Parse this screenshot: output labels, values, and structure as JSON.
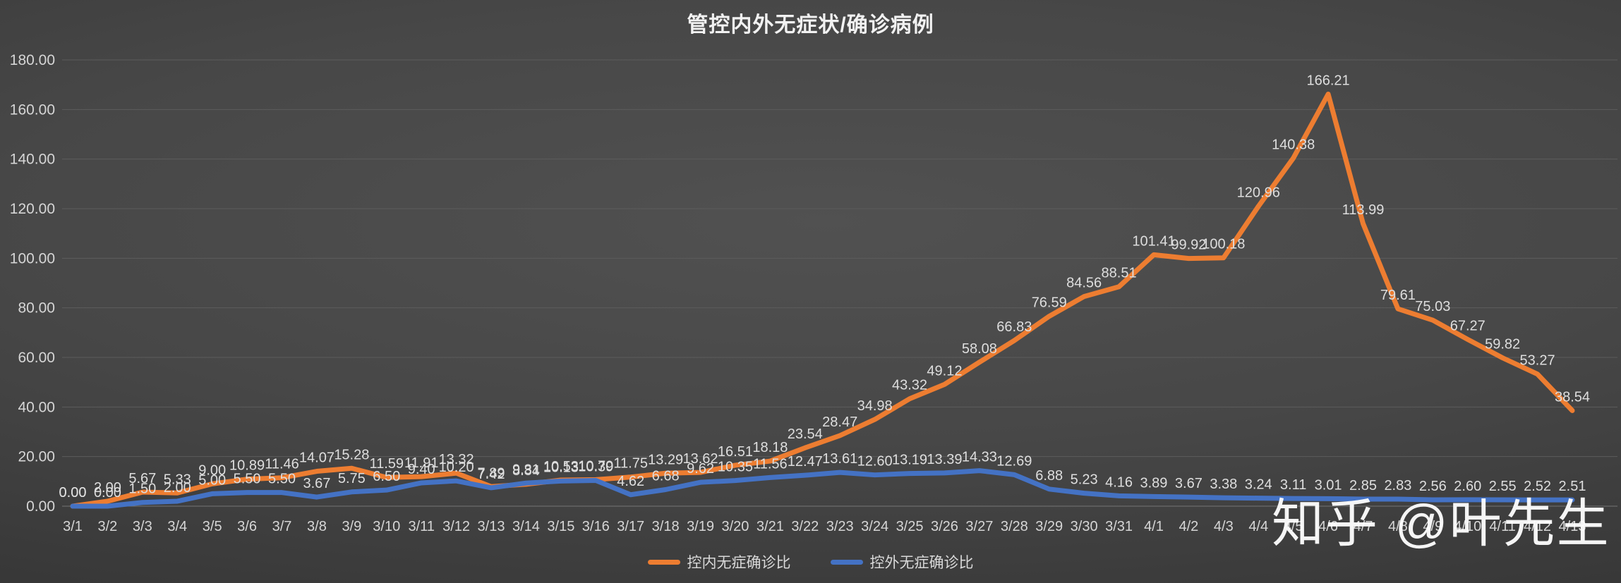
{
  "watermark": {
    "text": "知乎 @叶先生"
  },
  "chart_data": {
    "type": "line",
    "title": "管控内外无症状/确诊病例",
    "categories": [
      "3/1",
      "3/2",
      "3/3",
      "3/4",
      "3/5",
      "3/6",
      "3/7",
      "3/8",
      "3/9",
      "3/10",
      "3/11",
      "3/12",
      "3/13",
      "3/14",
      "3/15",
      "3/16",
      "3/17",
      "3/18",
      "3/19",
      "3/20",
      "3/21",
      "3/22",
      "3/23",
      "3/24",
      "3/25",
      "3/26",
      "3/27",
      "3/28",
      "3/29",
      "3/30",
      "3/31",
      "4/1",
      "4/2",
      "4/3",
      "4/4",
      "4/5",
      "4/6",
      "4/7",
      "4/8",
      "4/9",
      "4/10",
      "4/11",
      "4/12",
      "4/13"
    ],
    "series": [
      {
        "name": "控内无症确诊比",
        "color": "#ED7D31",
        "values": [
          0.0,
          2.0,
          5.67,
          5.33,
          9.0,
          10.89,
          11.46,
          14.07,
          15.28,
          11.59,
          11.91,
          13.32,
          7.89,
          8.84,
          10.53,
          10.7,
          11.75,
          13.29,
          13.62,
          16.51,
          18.18,
          23.54,
          28.47,
          34.98,
          43.32,
          49.12,
          58.08,
          66.83,
          76.59,
          84.56,
          88.51,
          101.41,
          99.92,
          100.18,
          120.96,
          140.38,
          166.21,
          113.99,
          79.61,
          75.03,
          67.27,
          59.82,
          53.27,
          38.54
        ]
      },
      {
        "name": "控外无症确诊比",
        "color": "#4472C4",
        "values": [
          0.0,
          0.0,
          1.5,
          2.0,
          5.0,
          5.5,
          5.5,
          3.67,
          5.75,
          6.5,
          9.4,
          10.2,
          7.42,
          9.31,
          10.13,
          10.39,
          4.62,
          6.68,
          9.62,
          10.35,
          11.56,
          12.47,
          13.61,
          12.6,
          13.19,
          13.39,
          14.33,
          12.69,
          6.88,
          5.23,
          4.16,
          3.89,
          3.67,
          3.38,
          3.24,
          3.11,
          3.01,
          2.85,
          2.83,
          2.56,
          2.6,
          2.55,
          2.52,
          2.51
        ]
      }
    ],
    "ylim": [
      0,
      180
    ],
    "ytick_step": 20,
    "ytick_format": "2dp",
    "data_labels": true,
    "data_label_format": "2dp",
    "grid": true,
    "legend_position": "bottom"
  }
}
